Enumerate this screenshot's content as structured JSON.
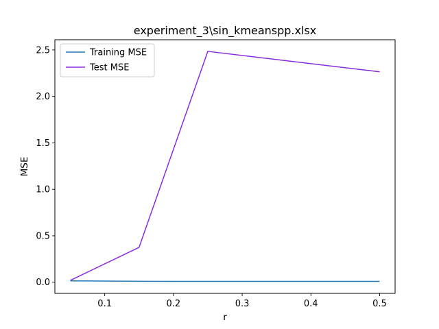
{
  "chart_data": {
    "type": "line",
    "title": "experiment_3\\sin_kmeanspp.xlsx",
    "xlabel": "r",
    "ylabel": "MSE",
    "x": [
      0.05,
      0.15,
      0.25,
      0.5
    ],
    "series": [
      {
        "name": "Training MSE",
        "color": "#1f77b4",
        "values": [
          0.015,
          0.01,
          0.009,
          0.009
        ]
      },
      {
        "name": "Test MSE",
        "color": "#8a2be2",
        "values": [
          0.02,
          0.375,
          2.485,
          2.265
        ]
      }
    ],
    "xlim": [
      0.0275,
      0.5225
    ],
    "ylim": [
      -0.12,
      2.61
    ],
    "xticks": [
      0.1,
      0.2,
      0.3,
      0.4,
      0.5
    ],
    "xtick_labels": [
      "0.1",
      "0.2",
      "0.3",
      "0.4",
      "0.5"
    ],
    "yticks": [
      0.0,
      0.5,
      1.0,
      1.5,
      2.0,
      2.5
    ],
    "ytick_labels": [
      "0.0",
      "0.5",
      "1.0",
      "1.5",
      "2.0",
      "2.5"
    ],
    "grid": false,
    "legend_position": "top-left"
  }
}
